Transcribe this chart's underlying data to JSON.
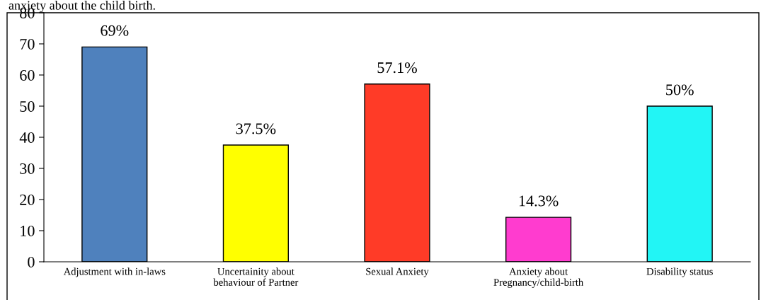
{
  "chart_data": {
    "type": "bar",
    "annotations": [
      "anxiety about the child birth."
    ],
    "categories": [
      "Adjustment with in-laws",
      "Uncertainity about\nbehaviour of Partner",
      "Sexual Anxiety",
      "Anxiety about\nPregnancy/child-birth",
      "Disability status"
    ],
    "values": [
      69,
      37.5,
      57.1,
      14.3,
      50
    ],
    "value_labels": [
      "69%",
      "37.5%",
      "57.1%",
      "14.3%",
      "50%"
    ],
    "colors": [
      "#4f81bd",
      "#ffff00",
      "#ff3b27",
      "#ff3ccf",
      "#22f5f5"
    ],
    "ylim": [
      0,
      80
    ],
    "yticks": [
      0,
      10,
      20,
      30,
      40,
      50,
      60,
      70,
      80
    ],
    "grid": false,
    "legend": false
  }
}
